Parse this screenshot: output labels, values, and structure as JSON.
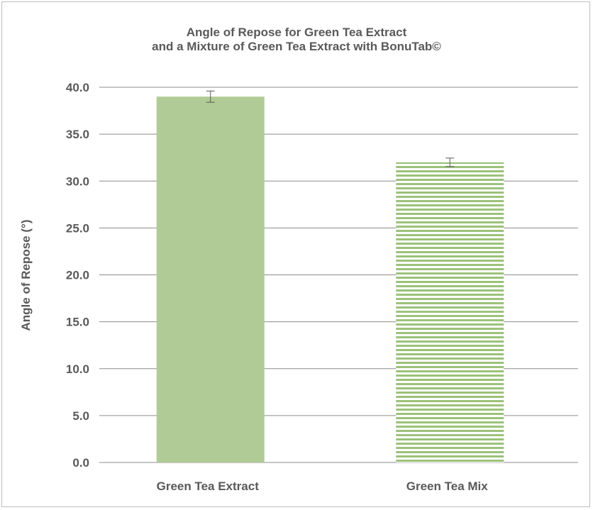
{
  "chart_data": {
    "type": "bar",
    "title_line1": "Angle of Repose for Green Tea Extract",
    "title_line2": "and a Mixture of Green Tea Extract with BonuTab©",
    "xlabel": "",
    "ylabel": "Angle of Repose (°)",
    "categories": [
      "Green Tea Extract",
      "Green Tea Mix"
    ],
    "values": [
      39.0,
      32.0
    ],
    "error_bars": [
      0.6,
      0.45
    ],
    "ylim": [
      0,
      40
    ],
    "yticks": [
      "0.0",
      "5.0",
      "10.0",
      "15.0",
      "20.0",
      "25.0",
      "30.0",
      "35.0",
      "40.0"
    ],
    "grid": true,
    "legend": "none",
    "colors": {
      "bar_solid": "#b0cb95",
      "bar_striped": "#9cc27a",
      "grid": "#8c8c8c",
      "text": "#595959",
      "error_bar": "#595959"
    },
    "fills": [
      "solid",
      "horizontal-stripes"
    ]
  }
}
